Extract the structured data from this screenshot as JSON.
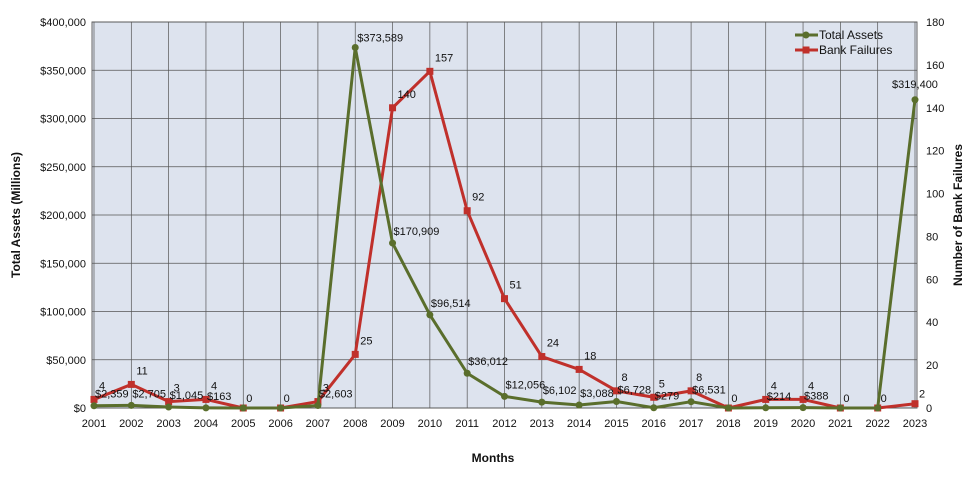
{
  "chart_data": {
    "type": "line",
    "xlabel": "Months",
    "ylabel": "Total Assets (Millions)",
    "y2label": "Number of Bank Failures",
    "categories": [
      "2001",
      "2002",
      "2003",
      "2004",
      "2005",
      "2006",
      "2007",
      "2008",
      "2009",
      "2010",
      "2011",
      "2012",
      "2013",
      "2014",
      "2015",
      "2016",
      "2017",
      "2018",
      "2019",
      "2020",
      "2021",
      "2022",
      "2023"
    ],
    "ylim": [
      0,
      400000
    ],
    "y_ticks": [
      0,
      50000,
      100000,
      150000,
      200000,
      250000,
      300000,
      350000,
      400000
    ],
    "y_tick_labels": [
      "$0",
      "$50,000",
      "$100,000",
      "$150,000",
      "$200,000",
      "$250,000",
      "$300,000",
      "$350,000",
      "$400,000"
    ],
    "y2lim": [
      0,
      180
    ],
    "y2_ticks": [
      0,
      20,
      40,
      60,
      80,
      100,
      120,
      140,
      160,
      180
    ],
    "y2_tick_labels": [
      "0",
      "20",
      "40",
      "60",
      "80",
      "100",
      "120",
      "140",
      "160",
      "180"
    ],
    "grid": true,
    "legend_position": "top-right",
    "series": [
      {
        "name": "Total Assets",
        "axis": "left",
        "color": "#5a6e2c",
        "marker": "circle",
        "values": [
          2359,
          2705,
          1045,
          163,
          0,
          0,
          2603,
          373589,
          170909,
          96514,
          36012,
          12056,
          6102,
          3088,
          6728,
          279,
          6531,
          0,
          214,
          388,
          0,
          0,
          319400
        ],
        "labels": [
          "$2,359",
          "$2,705",
          "$1,045",
          "$163",
          "",
          "",
          "$2,603",
          "$373,589",
          "$170,909",
          "$96,514",
          "$36,012",
          "$12,056",
          "$6,102",
          "$3,088",
          "$6,728",
          "$279",
          "$6,531",
          "",
          "$214",
          "$388",
          "",
          "",
          "$319,400"
        ]
      },
      {
        "name": "Bank Failures",
        "axis": "right",
        "color": "#c0302b",
        "marker": "square",
        "values": [
          4,
          11,
          3,
          4,
          0,
          0,
          3,
          25,
          140,
          157,
          92,
          51,
          24,
          18,
          8,
          5,
          8,
          0,
          4,
          4,
          0,
          0,
          2
        ],
        "labels": [
          "4",
          "11",
          "3",
          "4",
          "0",
          "0",
          "3",
          "25",
          "140",
          "157",
          "92",
          "51",
          "24",
          "18",
          "8",
          "5",
          "8",
          "0",
          "4",
          "4",
          "0",
          "0",
          "2"
        ]
      }
    ]
  }
}
